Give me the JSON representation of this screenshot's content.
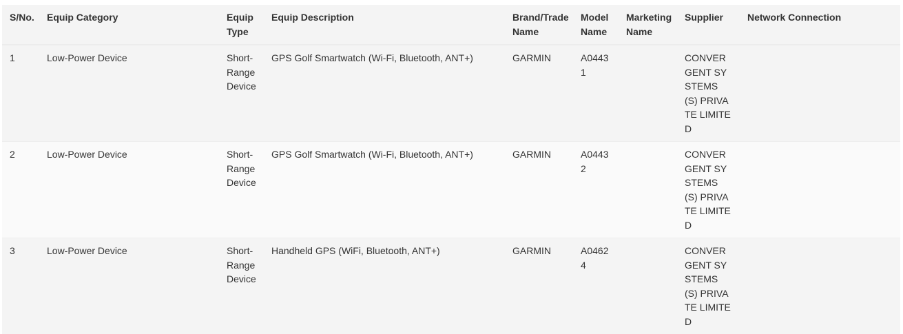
{
  "table": {
    "headers": [
      "S/No.",
      "Equip Category",
      "Equip Type",
      "Equip Description",
      "Brand/Trade Name",
      "Model Name",
      "Marketing Name",
      "Supplier",
      "Network Connection"
    ],
    "rows": [
      [
        "1",
        "Low-Power Device",
        "Short-Range Device",
        "GPS Golf Smartwatch (Wi-Fi, Bluetooth, ANT+)",
        "GARMIN",
        "A04431",
        "",
        "CONVERGENT SYSTEMS (S) PRIVATE LIMITED",
        ""
      ],
      [
        "2",
        "Low-Power Device",
        "Short-Range Device",
        "GPS Golf Smartwatch (Wi-Fi, Bluetooth, ANT+)",
        "GARMIN",
        "A04432",
        "",
        "CONVERGENT SYSTEMS (S) PRIVATE LIMITED",
        ""
      ],
      [
        "3",
        "Low-Power Device",
        "Short-Range Device",
        "Handheld GPS (WiFi, Bluetooth, ANT+)",
        "GARMIN",
        "A04624",
        "",
        "CONVERGENT SYSTEMS (S) PRIVATE LIMITED",
        ""
      ]
    ]
  }
}
